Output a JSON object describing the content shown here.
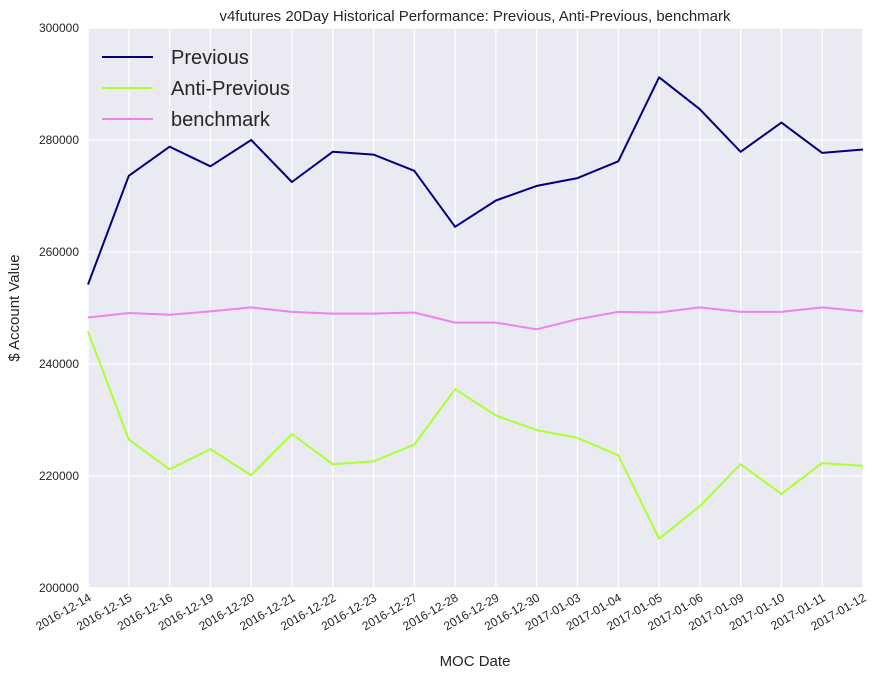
{
  "chart_data": {
    "type": "line",
    "title": "v4futures 20Day Historical Performance: Previous, Anti-Previous, benchmark",
    "xlabel": "MOC Date",
    "ylabel": "$ Account Value",
    "ylim": [
      200000,
      300000
    ],
    "yticks": [
      "200000",
      "220000",
      "240000",
      "260000",
      "280000",
      "300000"
    ],
    "grid": true,
    "legend_position": "top-left",
    "background": "#eaeaf2",
    "x": [
      "2016-12-14",
      "2016-12-15",
      "2016-12-16",
      "2016-12-19",
      "2016-12-20",
      "2016-12-21",
      "2016-12-22",
      "2016-12-23",
      "2016-12-27",
      "2016-12-28",
      "2016-12-29",
      "2016-12-30",
      "2017-01-03",
      "2017-01-04",
      "2017-01-05",
      "2017-01-06",
      "2017-01-09",
      "2017-01-10",
      "2017-01-11",
      "2017-01-12"
    ],
    "series": [
      {
        "name": "Previous",
        "color": "#000080",
        "values": [
          254200,
          273600,
          278800,
          275300,
          280000,
          272500,
          277900,
          277400,
          274500,
          264500,
          269200,
          271800,
          273200,
          276200,
          291200,
          285500,
          277900,
          283100,
          277700,
          278300
        ]
      },
      {
        "name": "Anti-Previous",
        "color": "#adff2f",
        "values": [
          245800,
          226500,
          221200,
          224800,
          220100,
          227500,
          222100,
          222600,
          225600,
          235500,
          230800,
          228200,
          226800,
          223700,
          208800,
          214600,
          222100,
          216800,
          222300,
          221800
        ]
      },
      {
        "name": "benchmark",
        "color": "#ee82ee",
        "values": [
          248300,
          249100,
          248800,
          249400,
          250100,
          249300,
          249000,
          249000,
          249200,
          247400,
          247400,
          246200,
          248000,
          249300,
          249200,
          250100,
          249300,
          249300,
          250100,
          249400
        ]
      }
    ]
  }
}
